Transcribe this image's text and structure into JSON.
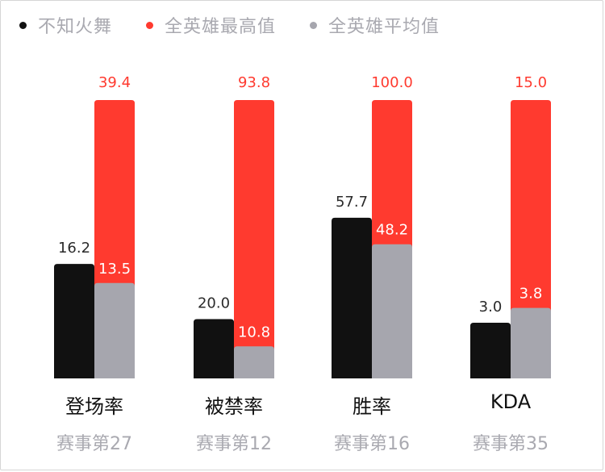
{
  "legend": {
    "player": {
      "label": "不知火舞",
      "color": "#111111"
    },
    "max": {
      "label": "全英雄最高值",
      "color": "#ff3a2f"
    },
    "avg": {
      "label": "全英雄平均值",
      "color": "#a6a6ae"
    }
  },
  "chart_data": {
    "type": "bar",
    "groups": [
      {
        "title": "登场率",
        "rank": "赛事第27",
        "player": 16.2,
        "player_label": "16.2",
        "max": 39.4,
        "max_label": "39.4",
        "avg": 13.5,
        "avg_label": "13.5"
      },
      {
        "title": "被禁率",
        "rank": "赛事第12",
        "player": 20.0,
        "player_label": "20.0",
        "max": 93.8,
        "max_label": "93.8",
        "avg": 10.8,
        "avg_label": "10.8"
      },
      {
        "title": "胜率",
        "rank": "赛事第16",
        "player": 57.7,
        "player_label": "57.7",
        "max": 100.0,
        "max_label": "100.0",
        "avg": 48.2,
        "avg_label": "48.2"
      },
      {
        "title": "KDA",
        "rank": "赛事第35",
        "player": 3.0,
        "player_label": "3.0",
        "max": 15.0,
        "max_label": "15.0",
        "avg": 3.8,
        "avg_label": "3.8"
      }
    ]
  }
}
